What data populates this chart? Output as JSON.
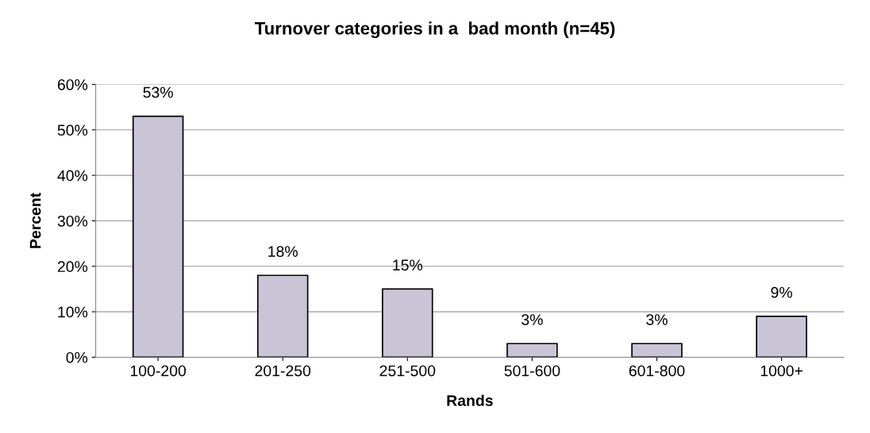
{
  "chart_data": {
    "type": "bar",
    "title": "Turnover categories in a  bad month (n=45)",
    "xlabel": "Rands",
    "ylabel": "Percent",
    "categories": [
      "100-200",
      "201-250",
      "251-500",
      "501-600",
      "601-800",
      "1000+"
    ],
    "values": [
      53,
      18,
      15,
      3,
      3,
      9
    ],
    "value_labels": [
      "53%",
      "18%",
      "15%",
      "3%",
      "3%",
      "9%"
    ],
    "color": "#c9c5d6",
    "ylim": [
      0,
      60
    ],
    "yticks": [
      {
        "value": 0,
        "label": "0%"
      },
      {
        "value": 10,
        "label": "10%"
      },
      {
        "value": 20,
        "label": "20%"
      },
      {
        "value": 30,
        "label": "30%"
      },
      {
        "value": 40,
        "label": "40%"
      },
      {
        "value": 50,
        "label": "50%"
      },
      {
        "value": 60,
        "label": "60%"
      }
    ],
    "grid": "y"
  }
}
